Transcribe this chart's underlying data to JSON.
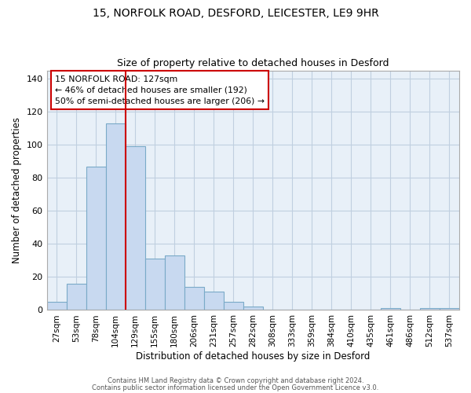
{
  "title": "15, NORFOLK ROAD, DESFORD, LEICESTER, LE9 9HR",
  "subtitle": "Size of property relative to detached houses in Desford",
  "xlabel": "Distribution of detached houses by size in Desford",
  "ylabel": "Number of detached properties",
  "bar_labels": [
    "27sqm",
    "53sqm",
    "78sqm",
    "104sqm",
    "129sqm",
    "155sqm",
    "180sqm",
    "206sqm",
    "231sqm",
    "257sqm",
    "282sqm",
    "308sqm",
    "333sqm",
    "359sqm",
    "384sqm",
    "410sqm",
    "435sqm",
    "461sqm",
    "486sqm",
    "512sqm",
    "537sqm"
  ],
  "bar_values": [
    5,
    16,
    87,
    113,
    99,
    31,
    33,
    14,
    11,
    5,
    2,
    0,
    0,
    0,
    0,
    0,
    0,
    1,
    0,
    1,
    1
  ],
  "bar_color": "#c8d9f0",
  "bar_edge_color": "#7aaac8",
  "vline_color": "#cc0000",
  "vline_x_index": 3.5,
  "ylim": [
    0,
    145
  ],
  "yticks": [
    0,
    20,
    40,
    60,
    80,
    100,
    120,
    140
  ],
  "annotation_box_text": "15 NORFOLK ROAD: 127sqm\n← 46% of detached houses are smaller (192)\n50% of semi-detached houses are larger (206) →",
  "footer_line1": "Contains HM Land Registry data © Crown copyright and database right 2024.",
  "footer_line2": "Contains public sector information licensed under the Open Government Licence v3.0.",
  "background_color": "#ffffff",
  "plot_bg_color": "#e8f0f8",
  "grid_color": "#c0cfe0"
}
